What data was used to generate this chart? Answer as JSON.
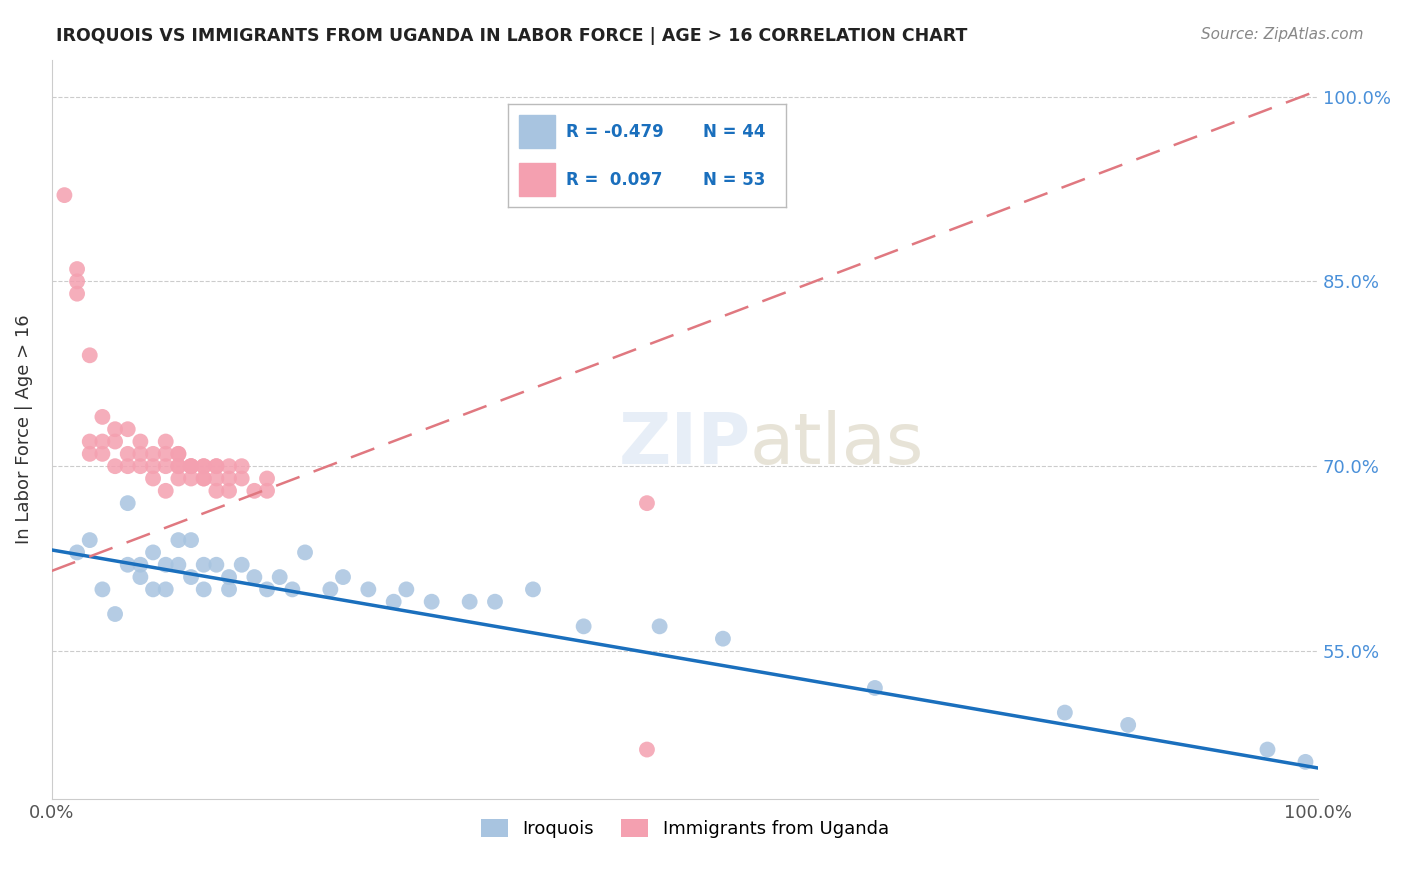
{
  "title": "IROQUOIS VS IMMIGRANTS FROM UGANDA IN LABOR FORCE | AGE > 16 CORRELATION CHART",
  "source": "Source: ZipAtlas.com",
  "ylabel": "In Labor Force | Age > 16",
  "xlim": [
    0.0,
    1.0
  ],
  "ylim": [
    0.43,
    1.03
  ],
  "yticks": [
    0.55,
    0.7,
    0.85,
    1.0
  ],
  "ytick_labels": [
    "55.0%",
    "70.0%",
    "85.0%",
    "100.0%"
  ],
  "xticks": [
    0.0,
    1.0
  ],
  "xtick_labels": [
    "0.0%",
    "100.0%"
  ],
  "iroquois_color": "#a8c4e0",
  "uganda_color": "#f4a0b0",
  "iroquois_line_color": "#1a6fbd",
  "uganda_line_color": "#e07880",
  "background_color": "#ffffff",
  "iroquois_x": [
    0.02,
    0.03,
    0.04,
    0.05,
    0.06,
    0.06,
    0.07,
    0.07,
    0.08,
    0.08,
    0.09,
    0.09,
    0.1,
    0.1,
    0.11,
    0.11,
    0.12,
    0.12,
    0.13,
    0.14,
    0.14,
    0.15,
    0.16,
    0.17,
    0.18,
    0.19,
    0.2,
    0.22,
    0.23,
    0.25,
    0.27,
    0.28,
    0.3,
    0.33,
    0.35,
    0.38,
    0.42,
    0.48,
    0.53,
    0.65,
    0.8,
    0.85,
    0.96,
    0.99
  ],
  "iroquois_y": [
    0.63,
    0.64,
    0.6,
    0.58,
    0.62,
    0.67,
    0.62,
    0.61,
    0.6,
    0.63,
    0.6,
    0.62,
    0.62,
    0.64,
    0.61,
    0.64,
    0.62,
    0.6,
    0.62,
    0.6,
    0.61,
    0.62,
    0.61,
    0.6,
    0.61,
    0.6,
    0.63,
    0.6,
    0.61,
    0.6,
    0.59,
    0.6,
    0.59,
    0.59,
    0.59,
    0.6,
    0.57,
    0.57,
    0.56,
    0.52,
    0.5,
    0.49,
    0.47,
    0.46
  ],
  "uganda_x": [
    0.01,
    0.02,
    0.02,
    0.02,
    0.03,
    0.03,
    0.03,
    0.04,
    0.04,
    0.04,
    0.05,
    0.05,
    0.05,
    0.06,
    0.06,
    0.06,
    0.07,
    0.07,
    0.07,
    0.08,
    0.08,
    0.08,
    0.09,
    0.09,
    0.09,
    0.09,
    0.1,
    0.1,
    0.1,
    0.1,
    0.1,
    0.11,
    0.11,
    0.11,
    0.11,
    0.12,
    0.12,
    0.12,
    0.12,
    0.13,
    0.13,
    0.13,
    0.13,
    0.14,
    0.14,
    0.14,
    0.15,
    0.15,
    0.16,
    0.17,
    0.17,
    0.47,
    0.47
  ],
  "uganda_y": [
    0.92,
    0.86,
    0.85,
    0.84,
    0.79,
    0.72,
    0.71,
    0.74,
    0.72,
    0.71,
    0.73,
    0.72,
    0.7,
    0.73,
    0.71,
    0.7,
    0.72,
    0.71,
    0.7,
    0.71,
    0.7,
    0.69,
    0.72,
    0.71,
    0.7,
    0.68,
    0.71,
    0.71,
    0.7,
    0.7,
    0.69,
    0.7,
    0.7,
    0.7,
    0.69,
    0.7,
    0.7,
    0.69,
    0.69,
    0.7,
    0.7,
    0.69,
    0.68,
    0.69,
    0.7,
    0.68,
    0.7,
    0.69,
    0.68,
    0.69,
    0.68,
    0.47,
    0.67
  ],
  "uganda_line_x0": 0.0,
  "uganda_line_y0": 0.615,
  "uganda_line_x1": 1.0,
  "uganda_line_y1": 1.005,
  "iroquois_line_x0": 0.0,
  "iroquois_line_y0": 0.632,
  "iroquois_line_x1": 1.0,
  "iroquois_line_y1": 0.455
}
